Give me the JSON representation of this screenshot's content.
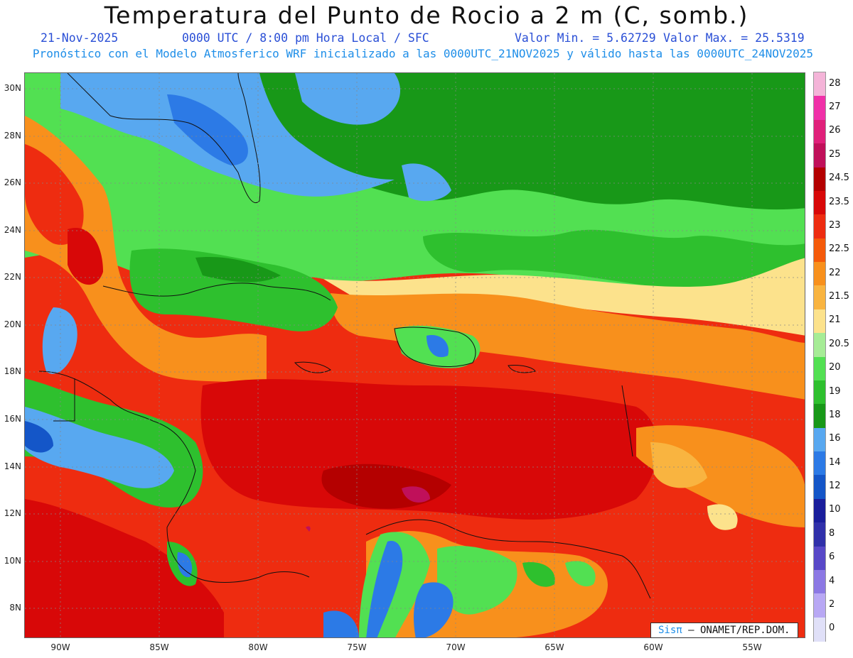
{
  "header": {
    "title": "Temperatura del Punto de Rocio a 2 m (C, somb.)",
    "date": "21-Nov-2025",
    "time": "0000 UTC / 8:00 pm Hora Local / SFC",
    "vmin": "Valor Min. = 5.62729",
    "vmax": "Valor Max. = 25.5319",
    "model_note": "Pronóstico con el Modelo Atmosferico WRF inicializado a las 0000UTC_21NOV2025 y válido hasta las  0000UTC_24NOV2025"
  },
  "axes": {
    "lat_labels": [
      "30N",
      "28N",
      "26N",
      "24N",
      "22N",
      "20N",
      "18N",
      "16N",
      "14N",
      "12N",
      "10N",
      "8N"
    ],
    "lon_labels": [
      "90W",
      "85W",
      "80W",
      "75W",
      "70W",
      "65W",
      "60W",
      "55W"
    ]
  },
  "colorbar": {
    "labels": [
      "28",
      "27",
      "26",
      "25",
      "24.5",
      "23.5",
      "23",
      "22.5",
      "22",
      "21.5",
      "21",
      "20.5",
      "20",
      "19",
      "18",
      "16",
      "14",
      "12",
      "10",
      "8",
      "6",
      "4",
      "2",
      "0"
    ],
    "colors": [
      "#f4b4d8",
      "#f030a8",
      "#e0207a",
      "#c0105a",
      "#b40000",
      "#d80808",
      "#ee2c10",
      "#f55a0a",
      "#f8901c",
      "#f9b440",
      "#fce28c",
      "#a6ec96",
      "#52e052",
      "#2ec02e",
      "#189818",
      "#58a8f0",
      "#2c7ae6",
      "#1456c8",
      "#1a1e9c",
      "#3030aa",
      "#5848c8",
      "#8c78e4",
      "#b8a8f4",
      "#e0e0f8"
    ]
  },
  "credit": {
    "brand": "Sisπ",
    "org": " – ONAMET/REP.DOM."
  }
}
